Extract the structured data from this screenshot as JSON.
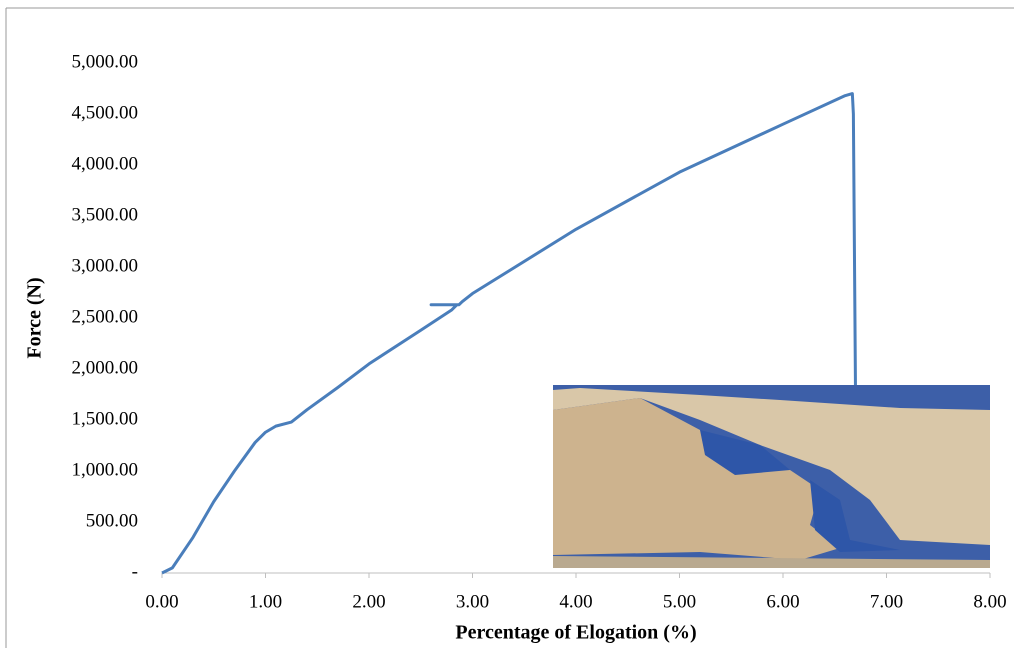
{
  "chart_data": {
    "type": "line",
    "x_label": "Percentage of Elogation (%)",
    "y_label": "Force (N)",
    "xlim": [
      0,
      8
    ],
    "ylim": [
      0,
      5000
    ],
    "xticks": [
      {
        "value": 0,
        "label": "0.00"
      },
      {
        "value": 1,
        "label": "1.00"
      },
      {
        "value": 2,
        "label": "2.00"
      },
      {
        "value": 3,
        "label": "3.00"
      },
      {
        "value": 4,
        "label": "4.00"
      },
      {
        "value": 5,
        "label": "5.00"
      },
      {
        "value": 6,
        "label": "6.00"
      },
      {
        "value": 7,
        "label": "7.00"
      },
      {
        "value": 8,
        "label": "8.00"
      }
    ],
    "yticks": [
      {
        "value": 0,
        "label": "-"
      },
      {
        "value": 500,
        "label": "500.00"
      },
      {
        "value": 1000,
        "label": "1,000.00"
      },
      {
        "value": 1500,
        "label": "1,500.00"
      },
      {
        "value": 2000,
        "label": "2,000.00"
      },
      {
        "value": 2500,
        "label": "2,500.00"
      },
      {
        "value": 3000,
        "label": "3,000.00"
      },
      {
        "value": 3500,
        "label": "3,500.00"
      },
      {
        "value": 4000,
        "label": "4,000.00"
      },
      {
        "value": 4500,
        "label": "4,500.00"
      },
      {
        "value": 5000,
        "label": "5,000.00"
      }
    ],
    "series": [
      {
        "color": "#4a7ebb",
        "x": [
          0,
          0.1,
          0.3,
          0.5,
          0.7,
          0.9,
          1.0,
          1.1,
          1.25,
          1.4,
          1.7,
          2.0,
          2.5,
          2.8,
          2.85,
          2.6,
          2.87,
          2.9,
          3.0,
          4.0,
          5.0,
          6.0,
          6.6,
          6.67,
          6.68,
          6.7
        ],
        "values": [
          0,
          50,
          350,
          700,
          1000,
          1280,
          1380,
          1440,
          1480,
          1600,
          1820,
          2050,
          2380,
          2580,
          2630,
          2630,
          2630,
          2660,
          2740,
          3370,
          3930,
          4400,
          4680,
          4700,
          4500,
          1840
        ]
      }
    ]
  }
}
